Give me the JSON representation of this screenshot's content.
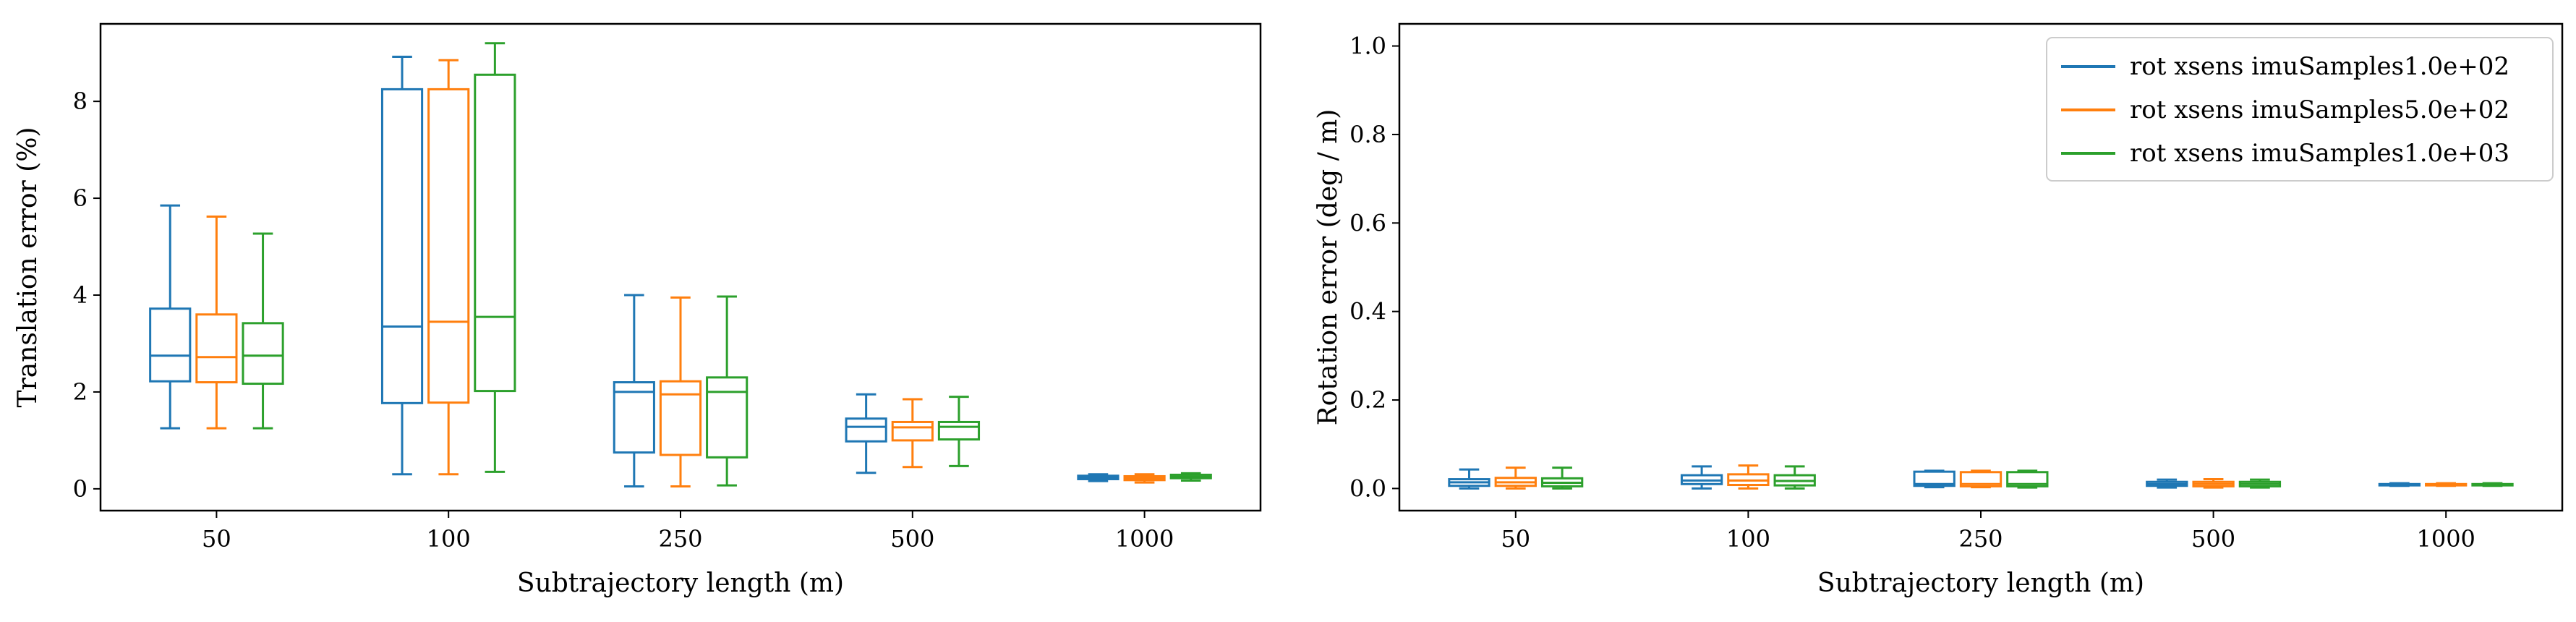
{
  "chart_data": [
    {
      "type": "box",
      "title": "",
      "xlabel": "Subtrajectory length (m)",
      "ylabel": "Translation error (%)",
      "categories": [
        "50",
        "100",
        "250",
        "500",
        "1000"
      ],
      "ylim": [
        -0.45,
        9.6
      ],
      "yticks": [
        0,
        2,
        4,
        6,
        8
      ],
      "grid": false,
      "legend": false,
      "series": [
        {
          "color": "#1f77b4",
          "boxes": [
            {
              "whislo": 1.25,
              "q1": 2.22,
              "med": 2.75,
              "q3": 3.72,
              "whishi": 5.85
            },
            {
              "whislo": 0.3,
              "q1": 1.77,
              "med": 3.35,
              "q3": 8.25,
              "whishi": 8.92
            },
            {
              "whislo": 0.05,
              "q1": 0.75,
              "med": 2.0,
              "q3": 2.2,
              "whishi": 4.0
            },
            {
              "whislo": 0.33,
              "q1": 0.98,
              "med": 1.28,
              "q3": 1.45,
              "whishi": 1.95
            },
            {
              "whislo": 0.16,
              "q1": 0.2,
              "med": 0.23,
              "q3": 0.27,
              "whishi": 0.3
            }
          ]
        },
        {
          "color": "#ff7f0e",
          "boxes": [
            {
              "whislo": 1.25,
              "q1": 2.2,
              "med": 2.72,
              "q3": 3.6,
              "whishi": 5.62
            },
            {
              "whislo": 0.3,
              "q1": 1.78,
              "med": 3.45,
              "q3": 8.25,
              "whishi": 8.85
            },
            {
              "whislo": 0.05,
              "q1": 0.7,
              "med": 1.95,
              "q3": 2.22,
              "whishi": 3.95
            },
            {
              "whislo": 0.45,
              "q1": 1.0,
              "med": 1.27,
              "q3": 1.38,
              "whishi": 1.85
            },
            {
              "whislo": 0.13,
              "q1": 0.18,
              "med": 0.22,
              "q3": 0.26,
              "whishi": 0.3
            }
          ]
        },
        {
          "color": "#2ca02c",
          "boxes": [
            {
              "whislo": 1.25,
              "q1": 2.17,
              "med": 2.75,
              "q3": 3.42,
              "whishi": 5.27
            },
            {
              "whislo": 0.35,
              "q1": 2.02,
              "med": 3.55,
              "q3": 8.55,
              "whishi": 9.2
            },
            {
              "whislo": 0.07,
              "q1": 0.65,
              "med": 2.0,
              "q3": 2.3,
              "whishi": 3.97
            },
            {
              "whislo": 0.47,
              "q1": 1.02,
              "med": 1.28,
              "q3": 1.38,
              "whishi": 1.9
            },
            {
              "whislo": 0.17,
              "q1": 0.22,
              "med": 0.25,
              "q3": 0.29,
              "whishi": 0.32
            }
          ]
        }
      ]
    },
    {
      "type": "box",
      "title": "",
      "xlabel": "Subtrajectory length (m)",
      "ylabel": "Rotation error (deg / m)",
      "categories": [
        "50",
        "100",
        "250",
        "500",
        "1000"
      ],
      "ylim": [
        -0.05,
        1.05
      ],
      "yticks": [
        0.0,
        0.2,
        0.4,
        0.6,
        0.8,
        1.0
      ],
      "grid": false,
      "legend": "top-right",
      "series": [
        {
          "name": "rot xsens imuSamples1.0e+02",
          "color": "#1f77b4",
          "boxes": [
            {
              "whislo": 0.0,
              "q1": 0.006,
              "med": 0.014,
              "q3": 0.021,
              "whishi": 0.043
            },
            {
              "whislo": 0.0,
              "q1": 0.01,
              "med": 0.018,
              "q3": 0.03,
              "whishi": 0.05
            },
            {
              "whislo": 0.003,
              "q1": 0.006,
              "med": 0.01,
              "q3": 0.038,
              "whishi": 0.04
            },
            {
              "whislo": 0.002,
              "q1": 0.006,
              "med": 0.01,
              "q3": 0.015,
              "whishi": 0.02
            },
            {
              "whislo": 0.006,
              "q1": 0.007,
              "med": 0.009,
              "q3": 0.01,
              "whishi": 0.012
            }
          ]
        },
        {
          "name": "rot xsens imuSamples5.0e+02",
          "color": "#ff7f0e",
          "boxes": [
            {
              "whislo": 0.0,
              "q1": 0.006,
              "med": 0.014,
              "q3": 0.024,
              "whishi": 0.047
            },
            {
              "whislo": 0.0,
              "q1": 0.008,
              "med": 0.018,
              "q3": 0.032,
              "whishi": 0.052
            },
            {
              "whislo": 0.003,
              "q1": 0.005,
              "med": 0.01,
              "q3": 0.037,
              "whishi": 0.04
            },
            {
              "whislo": 0.002,
              "q1": 0.005,
              "med": 0.01,
              "q3": 0.015,
              "whishi": 0.021
            },
            {
              "whislo": 0.006,
              "q1": 0.007,
              "med": 0.009,
              "q3": 0.01,
              "whishi": 0.012
            }
          ]
        },
        {
          "name": "rot xsens imuSamples1.0e+03",
          "color": "#2ca02c",
          "boxes": [
            {
              "whislo": 0.0,
              "q1": 0.005,
              "med": 0.013,
              "q3": 0.023,
              "whishi": 0.047
            },
            {
              "whislo": 0.0,
              "q1": 0.007,
              "med": 0.017,
              "q3": 0.03,
              "whishi": 0.05
            },
            {
              "whislo": 0.002,
              "q1": 0.005,
              "med": 0.01,
              "q3": 0.037,
              "whishi": 0.04
            },
            {
              "whislo": 0.002,
              "q1": 0.005,
              "med": 0.01,
              "q3": 0.015,
              "whishi": 0.02
            },
            {
              "whislo": 0.006,
              "q1": 0.007,
              "med": 0.009,
              "q3": 0.01,
              "whishi": 0.012
            }
          ]
        }
      ]
    }
  ]
}
